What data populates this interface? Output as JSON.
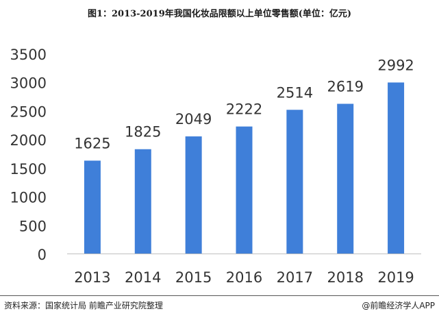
{
  "title": "图1：2013-2019年我国化妆品限额以上单位零售额(单位：亿元)",
  "footer": {
    "source": "资料来源：国家统计局 前瞻产业研究院整理",
    "credit": "@前瞻经济学人APP"
  },
  "colors": {
    "bar": "#3f7fd9",
    "axis": "#bfbfbf",
    "text": "#333333"
  },
  "chart_data": {
    "type": "bar",
    "title": "图1：2013-2019年我国化妆品限额以上单位零售额(单位：亿元)",
    "xlabel": "",
    "ylabel": "",
    "categories": [
      "2013",
      "2014",
      "2015",
      "2016",
      "2017",
      "2018",
      "2019"
    ],
    "values": [
      1625,
      1825,
      2049,
      2222,
      2514,
      2619,
      2992
    ],
    "data_labels": [
      "1625",
      "1825",
      "2049",
      "2222",
      "2514",
      "2619",
      "2992"
    ],
    "ylim": [
      0,
      3500
    ],
    "yticks": [
      0,
      500,
      1000,
      1500,
      2000,
      2500,
      3000,
      3500
    ],
    "grid": false,
    "legend": "none"
  }
}
